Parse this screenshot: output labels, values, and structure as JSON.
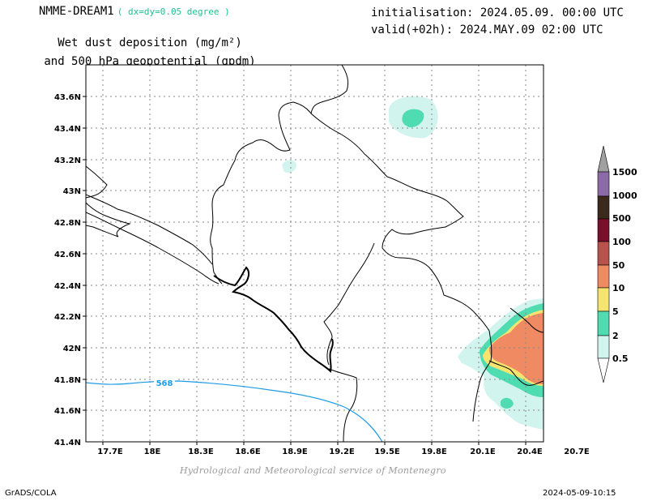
{
  "header": {
    "model": "NMME-DREAM1",
    "resolution": "( dx=dy=0.05 degree )",
    "title_line1": "Wet dust deposition (mg/m²)",
    "title_line2": "and 500 hPa geopotential (gpdm)",
    "init": "initialisation: 2024.05.09. 00:00 UTC",
    "valid": "valid(+02h): 2024.MAY.09 02:00 UTC"
  },
  "map": {
    "lat_labels": [
      "43.6N",
      "43.4N",
      "43.2N",
      "43N",
      "42.8N",
      "42.6N",
      "42.4N",
      "42.2N",
      "42N",
      "41.8N",
      "41.6N",
      "41.4N"
    ],
    "lon_labels": [
      "17.7E",
      "18E",
      "18.3E",
      "18.6E",
      "18.9E",
      "19.2E",
      "19.5E",
      "19.8E",
      "20.1E",
      "20.4E",
      "20.7E"
    ],
    "contour_label": "568",
    "contour_color": "#1e9be6"
  },
  "colorbar": {
    "levels": [
      "1500",
      "1000",
      "500",
      "100",
      "50",
      "10",
      "5",
      "2",
      "0.5"
    ],
    "colors": [
      "#a0a0a0",
      "#8c6aa8",
      "#3b2a1c",
      "#7a0e2b",
      "#b8524a",
      "#ef8a62",
      "#f5e46e",
      "#4fdcb0",
      "#d2f4ee",
      "#ffffff"
    ]
  },
  "footer": {
    "credit": "Hydrological and Meteorological service of Montenegro",
    "software": "GrADS/COLA",
    "timestamp": "2024-05-09-10:15"
  }
}
